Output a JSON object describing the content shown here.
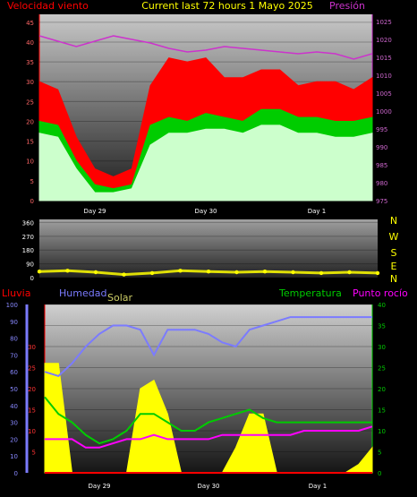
{
  "colors": {
    "wind_avg": "#ccffcc",
    "wind_gust": "#ff0000",
    "wind_mid": "#00cc00",
    "pressure": "#cc33cc",
    "direction": "#ffff00",
    "rain": "#ff0000",
    "humidity": "#7b7bff",
    "solar": "#ffff00",
    "temperature": "#00cc00",
    "dewpoint": "#ff00ff",
    "title": "#ffff00",
    "axis_text": "#ffffff"
  },
  "header": {
    "left_label": "Velocidad viento",
    "title": "Current last 72 hours 1 Mayo 2025",
    "right_label": "Presión"
  },
  "panel3_labels": {
    "rain": "Lluvia",
    "humidity": "Humedad",
    "solar": "Solar",
    "temperature": "Temperatura",
    "dewpoint": "Punto rocío"
  },
  "compass": [
    "N",
    "W",
    "S",
    "E",
    "N"
  ],
  "chart_data": [
    {
      "type": "area",
      "title": "Current last 72 hours 1 Mayo 2025",
      "x_ticks": [
        "Day 29",
        "Day 30",
        "Day 1"
      ],
      "y_left_label": "Velocidad viento",
      "y_left_ticks": [
        0,
        5,
        10,
        15,
        20,
        25,
        30,
        35,
        40,
        45
      ],
      "y_left_range": [
        0,
        47
      ],
      "y_right_label": "Presión",
      "y_right_ticks": [
        975,
        980,
        985,
        990,
        995,
        1000,
        1005,
        1010,
        1015,
        1020,
        1025
      ],
      "y_right_range": [
        975,
        1027
      ],
      "x_hours": [
        0,
        4,
        8,
        12,
        16,
        20,
        24,
        28,
        32,
        36,
        40,
        44,
        48,
        52,
        56,
        60,
        64,
        68,
        72
      ],
      "series": [
        {
          "name": "Velocidad viento",
          "axis": "left",
          "values": [
            30,
            28,
            16,
            8,
            6,
            8,
            29,
            36,
            35,
            36,
            31,
            31,
            33,
            33,
            29,
            30,
            30,
            28,
            31
          ]
        },
        {
          "axis": "left",
          "values": [
            20,
            19,
            10,
            4,
            3,
            4,
            19,
            21,
            20,
            22,
            21,
            20,
            23,
            23,
            21,
            21,
            20,
            20,
            21
          ]
        },
        {
          "axis": "left",
          "values": [
            17,
            16,
            8,
            2,
            2,
            3,
            14,
            17,
            17,
            18,
            18,
            17,
            19,
            19,
            17,
            17,
            16,
            16,
            17
          ]
        },
        {
          "name": "Presión",
          "axis": "right",
          "values": [
            1021,
            1019.5,
            1018,
            1019.5,
            1021,
            1020,
            1019,
            1017.5,
            1016.5,
            1017,
            1018,
            1017.5,
            1017,
            1016.5,
            1016,
            1016.5,
            1016,
            1014.5,
            1016
          ]
        }
      ]
    },
    {
      "type": "scatter",
      "y_ticks": [
        0,
        90,
        180,
        270,
        360
      ],
      "y_range": [
        0,
        380
      ],
      "x_ticks": [
        "Day 29",
        "Day 30",
        "Day 1"
      ],
      "x_hours": [
        0,
        6,
        12,
        18,
        24,
        30,
        36,
        42,
        48,
        54,
        60,
        66,
        72
      ],
      "series": [
        {
          "values": [
            40,
            45,
            35,
            20,
            30,
            45,
            40,
            35,
            40,
            35,
            30,
            35,
            30
          ]
        }
      ]
    },
    {
      "type": "line",
      "x_ticks": [
        "Day 29",
        "Day 30",
        "Day 1"
      ],
      "y_rain_label": "Lluvia",
      "y_rain_ticks": [
        0,
        10,
        20,
        30,
        40,
        50,
        60,
        70,
        80,
        90,
        100
      ],
      "y_hum_label": "Humedad",
      "y_hum_ticks": [
        5,
        10,
        15,
        20,
        25,
        30
      ],
      "y_temp_label": "Temperatura",
      "y_temp_ticks": [
        0,
        5,
        10,
        15,
        20,
        25,
        30,
        35,
        40
      ],
      "y_temp_range": [
        0,
        40
      ],
      "x_hours": [
        0,
        3,
        6,
        9,
        12,
        15,
        18,
        21,
        24,
        27,
        30,
        33,
        36,
        39,
        42,
        45,
        48,
        51,
        54,
        57,
        60,
        63,
        66,
        69,
        72
      ],
      "series": [
        {
          "name": "Humedad",
          "values": [
            24,
            23,
            26,
            30,
            33,
            35,
            35,
            34,
            28,
            34,
            34,
            34,
            33,
            31,
            30,
            34,
            35,
            36,
            37,
            37,
            37,
            37,
            37,
            37,
            37
          ]
        },
        {
          "name": "Temperatura",
          "values": [
            18,
            14,
            12,
            9,
            7,
            8,
            10,
            14,
            14,
            12,
            10,
            10,
            12,
            13,
            14,
            15,
            13,
            12,
            12,
            12,
            12,
            12,
            12,
            12,
            12
          ]
        },
        {
          "name": "Punto rocío",
          "values": [
            8,
            8,
            8,
            6,
            6,
            7,
            8,
            8,
            9,
            8,
            8,
            8,
            8,
            9,
            9,
            9,
            9,
            9,
            9,
            10,
            10,
            10,
            10,
            10,
            11
          ]
        },
        {
          "name": "Solar",
          "values": [
            26,
            26,
            0,
            0,
            0,
            0,
            0,
            20,
            22,
            14,
            0,
            0,
            0,
            0,
            6,
            14,
            14,
            0,
            0,
            0,
            0,
            0,
            0,
            2,
            6
          ]
        },
        {
          "name": "Lluvia",
          "values": [
            0,
            0,
            0,
            0,
            0,
            0,
            0,
            0,
            0,
            0,
            0,
            0,
            0,
            0,
            0,
            0,
            0,
            0,
            0,
            0,
            0,
            0,
            0,
            0,
            0
          ]
        }
      ]
    }
  ]
}
